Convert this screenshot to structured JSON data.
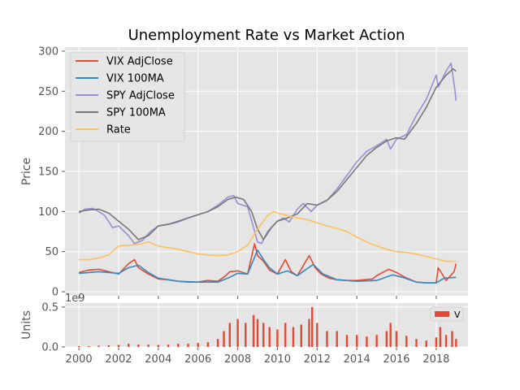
{
  "chart_data": [
    {
      "type": "line",
      "title": "Unemployment Rate vs Market Action",
      "xlabel": "",
      "ylabel": "Price",
      "ylim": [
        -5,
        305
      ],
      "xlim": [
        1999.3,
        2019.6
      ],
      "yticks": [
        0,
        50,
        100,
        150,
        200,
        250,
        300
      ],
      "grid": true,
      "legend_position": "top-left",
      "series": [
        {
          "name": "VIX AdjClose",
          "color": "#E24A33",
          "x": [
            2000.0,
            2000.5,
            2001.0,
            2001.5,
            2002.0,
            2002.5,
            2002.8,
            2003.0,
            2003.5,
            2004.0,
            2004.5,
            2005.0,
            2005.5,
            2006.0,
            2006.5,
            2007.0,
            2007.4,
            2007.6,
            2008.0,
            2008.5,
            2008.85,
            2009.0,
            2009.3,
            2009.6,
            2010.0,
            2010.4,
            2010.7,
            2011.0,
            2011.6,
            2011.9,
            2012.2,
            2012.6,
            2013.0,
            2013.5,
            2014.0,
            2014.8,
            2015.0,
            2015.6,
            2016.0,
            2016.5,
            2017.0,
            2017.5,
            2018.0,
            2018.1,
            2018.5,
            2018.9,
            2019.0
          ],
          "values": [
            24,
            27,
            28,
            25,
            22,
            35,
            40,
            30,
            22,
            16,
            15,
            13,
            12,
            12,
            14,
            13,
            20,
            25,
            26,
            22,
            60,
            45,
            38,
            27,
            22,
            40,
            25,
            20,
            45,
            30,
            22,
            17,
            15,
            14,
            14,
            16,
            20,
            28,
            24,
            17,
            12,
            11,
            11,
            30,
            14,
            25,
            35
          ]
        },
        {
          "name": "VIX 100MA",
          "color": "#348ABD",
          "x": [
            2000.0,
            2000.5,
            2001.0,
            2001.5,
            2002.0,
            2002.5,
            2003.0,
            2003.5,
            2004.0,
            2005.0,
            2006.0,
            2007.0,
            2007.5,
            2008.0,
            2008.5,
            2009.0,
            2009.3,
            2009.6,
            2010.0,
            2010.5,
            2011.0,
            2011.8,
            2012.3,
            2013.0,
            2014.0,
            2015.0,
            2015.8,
            2016.3,
            2017.0,
            2017.5,
            2018.0,
            2018.4,
            2019.0
          ],
          "values": [
            23,
            24,
            25,
            24,
            23,
            30,
            33,
            24,
            17,
            13,
            12,
            12,
            17,
            23,
            22,
            52,
            40,
            30,
            22,
            26,
            20,
            34,
            22,
            15,
            13,
            14,
            21,
            18,
            12,
            11,
            11,
            17,
            18
          ]
        },
        {
          "name": "SPY AdjClose",
          "color": "#988ED5",
          "x": [
            2000.0,
            2000.3,
            2000.7,
            2001.0,
            2001.3,
            2001.7,
            2002.0,
            2002.5,
            2002.8,
            2003.2,
            2003.6,
            2004.0,
            2004.5,
            2005.0,
            2005.5,
            2006.0,
            2006.5,
            2007.0,
            2007.5,
            2007.8,
            2008.0,
            2008.5,
            2008.8,
            2009.0,
            2009.2,
            2009.5,
            2010.0,
            2010.3,
            2010.6,
            2011.0,
            2011.3,
            2011.7,
            2012.0,
            2012.5,
            2013.0,
            2013.5,
            2014.0,
            2014.5,
            2015.0,
            2015.5,
            2015.7,
            2016.0,
            2016.5,
            2017.0,
            2017.5,
            2018.0,
            2018.1,
            2018.5,
            2018.75,
            2018.95,
            2019.0
          ],
          "values": [
            98,
            103,
            104,
            100,
            95,
            80,
            82,
            70,
            60,
            64,
            75,
            82,
            84,
            87,
            92,
            96,
            100,
            108,
            118,
            120,
            110,
            106,
            80,
            62,
            60,
            75,
            88,
            92,
            87,
            103,
            110,
            100,
            108,
            114,
            128,
            145,
            162,
            175,
            182,
            190,
            178,
            190,
            196,
            220,
            240,
            270,
            255,
            275,
            285,
            250,
            238
          ]
        },
        {
          "name": "SPY 100MA",
          "color": "#777777",
          "x": [
            2000.0,
            2000.5,
            2001.0,
            2001.5,
            2002.0,
            2002.5,
            2003.0,
            2003.5,
            2004.0,
            2004.5,
            2005.0,
            2006.0,
            2006.5,
            2007.0,
            2007.5,
            2007.9,
            2008.3,
            2008.7,
            2009.0,
            2009.3,
            2009.7,
            2010.0,
            2010.5,
            2011.0,
            2011.5,
            2012.0,
            2012.5,
            2013.0,
            2013.5,
            2014.0,
            2014.5,
            2015.0,
            2015.5,
            2016.0,
            2016.4,
            2017.0,
            2017.5,
            2018.0,
            2018.5,
            2018.85,
            2019.0
          ],
          "values": [
            100,
            102,
            103,
            98,
            88,
            78,
            65,
            70,
            82,
            84,
            88,
            96,
            100,
            106,
            115,
            118,
            115,
            100,
            78,
            65,
            80,
            88,
            92,
            97,
            110,
            108,
            114,
            125,
            140,
            155,
            170,
            180,
            188,
            192,
            190,
            210,
            230,
            255,
            270,
            278,
            275
          ]
        },
        {
          "name": "Rate",
          "color": "#FBC15E",
          "x": [
            2000.0,
            2000.5,
            2001.0,
            2001.5,
            2002.0,
            2002.5,
            2003.0,
            2003.5,
            2004.0,
            2004.5,
            2005.0,
            2005.5,
            2006.0,
            2006.5,
            2007.0,
            2007.5,
            2008.0,
            2008.5,
            2009.0,
            2009.5,
            2009.8,
            2010.0,
            2010.5,
            2011.0,
            2011.5,
            2012.0,
            2012.5,
            2013.0,
            2013.5,
            2014.0,
            2014.5,
            2015.0,
            2015.5,
            2016.0,
            2016.5,
            2017.0,
            2017.5,
            2018.0,
            2018.5,
            2019.0
          ],
          "values": [
            40,
            40,
            42,
            46,
            57,
            58,
            59,
            62,
            57,
            55,
            53,
            50,
            47,
            46,
            45,
            46,
            50,
            58,
            78,
            95,
            100,
            98,
            95,
            92,
            90,
            86,
            82,
            79,
            75,
            68,
            62,
            57,
            53,
            50,
            49,
            47,
            44,
            41,
            38,
            38
          ]
        }
      ]
    },
    {
      "type": "bar",
      "xlabel": "",
      "ylabel": "Units",
      "offset_text": "1e9",
      "ylim": [
        0,
        0.55
      ],
      "yticks": [
        0.0,
        0.5
      ],
      "ytick_labels": [
        "0.0",
        "0.5"
      ],
      "xticks": [
        2000,
        2002,
        2004,
        2006,
        2008,
        2010,
        2012,
        2014,
        2016,
        2018
      ],
      "xtick_labels": [
        "2000",
        "2002",
        "2004",
        "2006",
        "2008",
        "2010",
        "2012",
        "2014",
        "2016",
        "2018"
      ],
      "grid": true,
      "legend_position": "top-right",
      "series": [
        {
          "name": "V",
          "color": "#E24A33",
          "x": [
            2000.0,
            2000.5,
            2001.0,
            2001.5,
            2002.0,
            2002.5,
            2003.0,
            2003.5,
            2004.0,
            2004.5,
            2005.0,
            2005.5,
            2006.0,
            2006.5,
            2007.0,
            2007.3,
            2007.6,
            2008.0,
            2008.4,
            2008.8,
            2009.0,
            2009.3,
            2009.6,
            2010.0,
            2010.4,
            2010.8,
            2011.2,
            2011.6,
            2011.75,
            2012.0,
            2012.5,
            2013.0,
            2013.5,
            2014.0,
            2014.5,
            2015.0,
            2015.5,
            2015.7,
            2016.0,
            2016.5,
            2017.0,
            2017.5,
            2018.0,
            2018.2,
            2018.5,
            2018.8,
            2019.0
          ],
          "values": [
            0.01,
            0.01,
            0.015,
            0.02,
            0.025,
            0.04,
            0.03,
            0.03,
            0.025,
            0.03,
            0.04,
            0.04,
            0.05,
            0.06,
            0.1,
            0.2,
            0.3,
            0.35,
            0.3,
            0.4,
            0.35,
            0.3,
            0.25,
            0.22,
            0.3,
            0.25,
            0.28,
            0.35,
            0.5,
            0.3,
            0.2,
            0.2,
            0.15,
            0.15,
            0.13,
            0.15,
            0.2,
            0.3,
            0.2,
            0.14,
            0.1,
            0.08,
            0.12,
            0.25,
            0.15,
            0.2,
            0.1
          ]
        }
      ]
    }
  ]
}
